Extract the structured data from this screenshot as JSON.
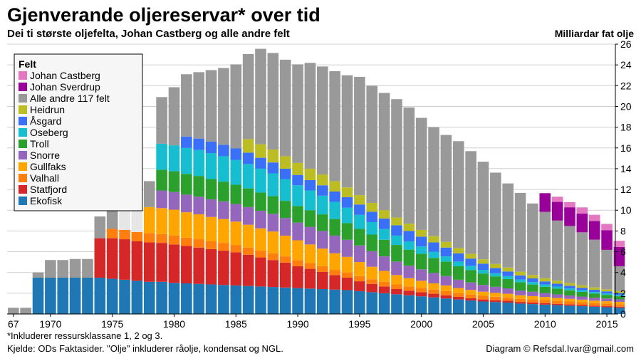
{
  "chart_data": {
    "type": "bar",
    "stacked": true,
    "title": "Gjenverande oljereservar* over tid",
    "subtitle": "Dei ti største oljefelta, Johan Castberg og alle andre felt",
    "ylabel": "Milliardar fat olje",
    "ylim": [
      0,
      26
    ],
    "yticks": [
      0,
      2,
      4,
      6,
      8,
      10,
      12,
      14,
      16,
      18,
      20,
      22,
      24,
      26
    ],
    "grid": true,
    "legend_position": "top-left",
    "legend_title": "Felt",
    "x_start": 1967,
    "x": [
      1967,
      1968,
      1969,
      1970,
      1971,
      1972,
      1973,
      1974,
      1975,
      1976,
      1977,
      1978,
      1979,
      1980,
      1981,
      1982,
      1983,
      1984,
      1985,
      1986,
      1987,
      1988,
      1989,
      1990,
      1991,
      1992,
      1993,
      1994,
      1995,
      1996,
      1997,
      1998,
      1999,
      2000,
      2001,
      2002,
      2003,
      2004,
      2005,
      2006,
      2007,
      2008,
      2009,
      2010,
      2011,
      2012,
      2013,
      2014,
      2015,
      2016
    ],
    "xtick_labels": [
      {
        "year": 1967,
        "label": "67"
      },
      {
        "year": 1970,
        "label": "1970"
      },
      {
        "year": 1975,
        "label": "1975"
      },
      {
        "year": 1980,
        "label": "1980"
      },
      {
        "year": 1985,
        "label": "1985"
      },
      {
        "year": 1990,
        "label": "1990"
      },
      {
        "year": 1995,
        "label": "1995"
      },
      {
        "year": 2000,
        "label": "2000"
      },
      {
        "year": 2005,
        "label": "2005"
      },
      {
        "year": 2010,
        "label": "2010"
      },
      {
        "year": 2015,
        "label": "2015"
      }
    ],
    "series": [
      {
        "name": "Ekofisk",
        "color": "#1f77b4",
        "values": [
          0,
          0,
          3.5,
          3.5,
          3.5,
          3.5,
          3.5,
          3.5,
          3.4,
          3.3,
          3.2,
          3.1,
          3.1,
          3.0,
          2.95,
          2.9,
          2.85,
          2.8,
          2.75,
          2.7,
          2.65,
          2.6,
          2.55,
          2.5,
          2.45,
          2.4,
          2.35,
          2.3,
          2.2,
          2.1,
          2.0,
          1.9,
          1.8,
          1.7,
          1.6,
          1.5,
          1.4,
          1.3,
          1.2,
          1.15,
          1.1,
          1.0,
          0.95,
          0.9,
          0.85,
          0.8,
          0.75,
          0.7,
          0.65,
          0.6
        ]
      },
      {
        "name": "Statfjord",
        "color": "#d62728",
        "values": [
          0,
          0,
          0,
          0,
          0,
          0,
          0,
          3.8,
          3.9,
          3.9,
          3.8,
          3.8,
          3.75,
          3.7,
          3.6,
          3.5,
          3.4,
          3.3,
          3.2,
          3.0,
          2.8,
          2.6,
          2.4,
          2.1,
          1.9,
          1.65,
          1.4,
          1.2,
          0.95,
          0.8,
          0.65,
          0.5,
          0.45,
          0.4,
          0.35,
          0.3,
          0.25,
          0.22,
          0.2,
          0.18,
          0.17,
          0.16,
          0.15,
          0.14,
          0.13,
          0.12,
          0.11,
          0.1,
          0.1,
          0.1
        ]
      },
      {
        "name": "Valhall",
        "color": "#ff7f0e",
        "values": [
          0,
          0,
          0,
          0,
          0,
          0,
          0,
          0,
          0.9,
          0.9,
          0.9,
          0.9,
          0.85,
          0.85,
          0.8,
          0.8,
          0.75,
          0.75,
          0.7,
          0.7,
          0.65,
          0.65,
          0.6,
          0.6,
          0.55,
          0.55,
          0.5,
          0.5,
          0.5,
          0.45,
          0.45,
          0.45,
          0.4,
          0.4,
          0.4,
          0.4,
          0.35,
          0.35,
          0.35,
          0.33,
          0.32,
          0.3,
          0.3,
          0.3,
          0.28,
          0.28,
          0.27,
          0.25,
          0.25,
          0.25
        ]
      },
      {
        "name": "Gullfaks",
        "color": "#ffa500",
        "values": [
          0,
          0,
          0,
          0,
          0,
          0,
          0,
          0,
          0,
          0,
          0,
          2.5,
          2.5,
          2.5,
          2.45,
          2.4,
          2.35,
          2.3,
          2.25,
          2.2,
          2.15,
          2.1,
          2.0,
          1.9,
          1.8,
          1.7,
          1.6,
          1.5,
          1.35,
          1.2,
          1.05,
          0.9,
          0.8,
          0.7,
          0.6,
          0.55,
          0.5,
          0.45,
          0.4,
          0.38,
          0.36,
          0.34,
          0.32,
          0.3,
          0.28,
          0.26,
          0.25,
          0.24,
          0.23,
          0.22
        ]
      },
      {
        "name": "Snorre",
        "color": "#9467bd",
        "values": [
          0,
          0,
          0,
          0,
          0,
          0,
          0,
          0,
          0,
          0,
          0,
          0,
          1.7,
          1.7,
          1.7,
          1.7,
          1.7,
          1.7,
          1.7,
          1.7,
          1.7,
          1.7,
          1.7,
          1.7,
          1.7,
          1.7,
          1.7,
          1.65,
          1.6,
          1.5,
          1.4,
          1.3,
          1.2,
          1.1,
          1.0,
          0.9,
          0.8,
          0.72,
          0.65,
          0.58,
          0.52,
          0.46,
          0.42,
          0.38,
          0.35,
          0.32,
          0.3,
          0.28,
          0.26,
          0.24
        ]
      },
      {
        "name": "Troll",
        "color": "#2ca02c",
        "values": [
          0,
          0,
          0,
          0,
          0,
          0,
          0,
          0,
          0,
          0,
          0,
          0,
          2.0,
          2.0,
          2.0,
          2.0,
          1.95,
          1.9,
          1.85,
          1.8,
          1.75,
          1.7,
          1.65,
          1.6,
          1.6,
          1.6,
          1.6,
          1.6,
          1.6,
          1.6,
          1.6,
          1.6,
          1.55,
          1.5,
          1.45,
          1.4,
          1.3,
          1.2,
          1.1,
          1.0,
          0.9,
          0.8,
          0.7,
          0.6,
          0.55,
          0.5,
          0.45,
          0.4,
          0.35,
          0.3
        ]
      },
      {
        "name": "Oseberg",
        "color": "#17becf",
        "values": [
          0,
          0,
          0,
          0,
          0,
          0,
          0,
          0,
          0,
          0,
          0,
          0,
          2.5,
          2.5,
          2.5,
          2.5,
          2.5,
          2.45,
          2.4,
          2.35,
          2.3,
          2.2,
          2.1,
          2.0,
          1.9,
          1.8,
          1.65,
          1.5,
          1.35,
          1.2,
          1.05,
          0.9,
          0.8,
          0.7,
          0.6,
          0.5,
          0.45,
          0.4,
          0.35,
          0.3,
          0.28,
          0.26,
          0.24,
          0.22,
          0.2,
          0.18,
          0.16,
          0.15,
          0.14,
          0.13
        ]
      },
      {
        "name": "Åsgard",
        "color": "#3a6ff7",
        "values": [
          0,
          0,
          0,
          0,
          0,
          0,
          0,
          0,
          0,
          0,
          0,
          0,
          0,
          0,
          1.1,
          1.1,
          1.1,
          1.1,
          1.1,
          1.1,
          1.05,
          1.05,
          1.0,
          1.0,
          1.0,
          1.0,
          1.0,
          1.0,
          1.0,
          1.0,
          1.0,
          1.0,
          1.0,
          0.95,
          0.9,
          0.85,
          0.8,
          0.7,
          0.6,
          0.5,
          0.45,
          0.4,
          0.35,
          0.3,
          0.28,
          0.26,
          0.24,
          0.22,
          0.2,
          0.18
        ]
      },
      {
        "name": "Heidrun",
        "color": "#bcbd22",
        "values": [
          0,
          0,
          0,
          0,
          0,
          0,
          0,
          0,
          0,
          0,
          0,
          0,
          0,
          0,
          0,
          0,
          0,
          0,
          0,
          1.3,
          1.3,
          1.25,
          1.2,
          1.15,
          1.1,
          1.05,
          1.0,
          0.95,
          0.9,
          0.85,
          0.8,
          0.75,
          0.7,
          0.65,
          0.6,
          0.55,
          0.5,
          0.45,
          0.42,
          0.4,
          0.38,
          0.35,
          0.32,
          0.3,
          0.28,
          0.26,
          0.24,
          0.22,
          0.2,
          0.18
        ]
      },
      {
        "name": "Alle andre 117 felt",
        "color": "#999999",
        "values": [
          0.6,
          0.6,
          0.5,
          1.7,
          1.7,
          1.8,
          1.8,
          2.1,
          2.2,
          2.9,
          3.4,
          2.5,
          4.5,
          5.6,
          6.0,
          6.4,
          6.9,
          7.4,
          8.1,
          8.2,
          9.2,
          9.3,
          9.3,
          9.5,
          10.2,
          10.4,
          10.6,
          10.8,
          11.4,
          11.3,
          11.3,
          11.4,
          11.2,
          10.8,
          10.5,
          10.3,
          10.3,
          9.9,
          9.4,
          8.8,
          8.1,
          7.6,
          6.9,
          6.4,
          5.8,
          5.5,
          5.1,
          4.6,
          3.8,
          2.4
        ]
      },
      {
        "name": "Johan Sverdrup",
        "color": "#990099",
        "values": [
          0,
          0,
          0,
          0,
          0,
          0,
          0,
          0,
          0,
          0,
          0,
          0,
          0,
          0,
          0,
          0,
          0,
          0,
          0,
          0,
          0,
          0,
          0,
          0,
          0,
          0,
          0,
          0,
          0,
          0,
          0,
          0,
          0,
          0,
          0,
          0,
          0,
          0,
          0,
          0,
          0,
          0,
          0,
          1.8,
          1.8,
          1.8,
          1.8,
          1.8,
          1.9,
          1.85
        ]
      },
      {
        "name": "Johan Castberg",
        "color": "#e377c2",
        "values": [
          0,
          0,
          0,
          0,
          0,
          0,
          0,
          0,
          0,
          0,
          0,
          0,
          0,
          0,
          0,
          0,
          0,
          0,
          0,
          0,
          0,
          0,
          0,
          0,
          0,
          0,
          0,
          0,
          0,
          0,
          0,
          0,
          0,
          0,
          0,
          0,
          0,
          0,
          0,
          0,
          0,
          0,
          0,
          0,
          0.5,
          0.5,
          0.6,
          0.6,
          0.6,
          0.6
        ]
      }
    ],
    "faded_years": [
      1976,
      1977
    ],
    "footnotes": {
      "note": "*Inkluderer ressursklassane 1, 2 og 3.",
      "source": "Kjelde: ODs Faktasider. \"Olje\" inkluderer råolje, kondensat og NGL.",
      "credit": "Diagram © Refsdal.Ivar@gmail.com"
    }
  }
}
